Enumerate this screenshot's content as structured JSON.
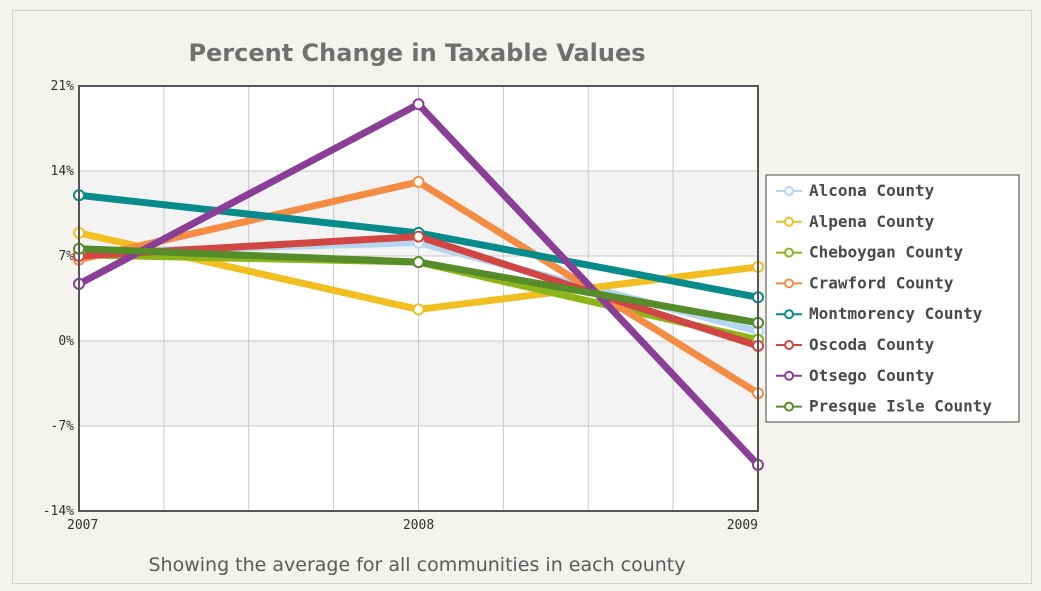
{
  "chart_data": {
    "type": "line",
    "title": "Percent Change in Taxable Values",
    "subtitle": "Showing the average for all communities in each county",
    "xlabel": "",
    "ylabel": "",
    "x": [
      "2007",
      "2008",
      "2009"
    ],
    "ylim": [
      -14,
      21
    ],
    "yticks": [
      21,
      14,
      7,
      0,
      -7,
      -14
    ],
    "ytick_labels": [
      "21%",
      "14%",
      "7%",
      "0%",
      "-7%",
      "-14%"
    ],
    "grid": true,
    "legend_position": "right",
    "series": [
      {
        "name": "Alcona County",
        "color": "#b5d6ee",
        "values": [
          7.3,
          8.1,
          0.8
        ]
      },
      {
        "name": "Alpena County",
        "color": "#f2bf22",
        "values": [
          8.9,
          2.6,
          6.1
        ]
      },
      {
        "name": "Cheboygan County",
        "color": "#8db419",
        "values": [
          7.1,
          6.5,
          0.1
        ]
      },
      {
        "name": "Crawford County",
        "color": "#f58c44",
        "values": [
          6.7,
          13.1,
          -4.3
        ]
      },
      {
        "name": "Montmorency County",
        "color": "#078b8b",
        "values": [
          12.0,
          8.9,
          3.6
        ]
      },
      {
        "name": "Oscoda County",
        "color": "#d24545",
        "values": [
          7.0,
          8.6,
          -0.4
        ]
      },
      {
        "name": "Otsego County",
        "color": "#8a3f97",
        "values": [
          4.7,
          19.5,
          -10.2
        ]
      },
      {
        "name": "Presque Isle County",
        "color": "#568c2a",
        "values": [
          7.6,
          6.5,
          1.5
        ]
      }
    ]
  }
}
